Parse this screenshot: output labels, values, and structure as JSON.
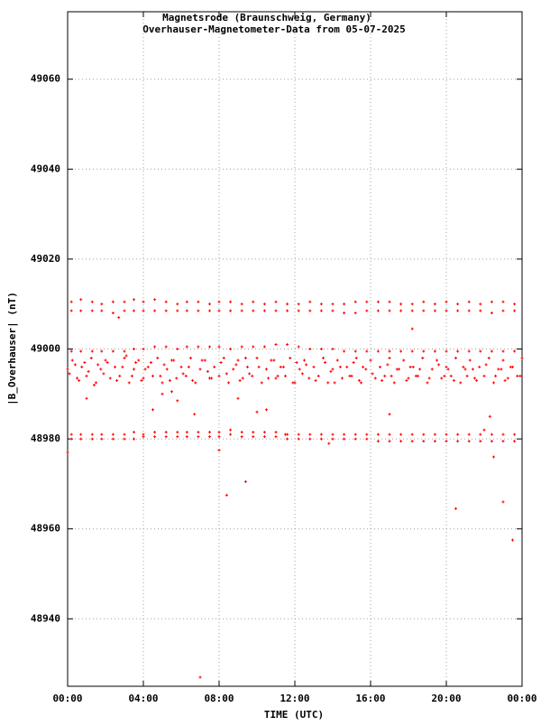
{
  "chart_data": {
    "type": "scatter",
    "title": [
      "Magnetsrode (Braunschweig, Germany)",
      "Overhauser-Magnetometer-Data from 05-07-2025"
    ],
    "x_label": "TIME (UTC)",
    "y_label": "|B_Overhauser| (nT)",
    "xlim": [
      0,
      24
    ],
    "ylim": [
      48925,
      49075
    ],
    "xticks": [
      {
        "value": 0,
        "label": "00:00"
      },
      {
        "value": 4,
        "label": "04:00"
      },
      {
        "value": 8,
        "label": "08:00"
      },
      {
        "value": 12,
        "label": "12:00"
      },
      {
        "value": 16,
        "label": "16:00"
      },
      {
        "value": 20,
        "label": "20:00"
      },
      {
        "value": 24,
        "label": "00:00"
      }
    ],
    "yticks": [
      48940,
      48960,
      48980,
      49000,
      49020,
      49040,
      49060
    ],
    "grid": true,
    "color": "#ff0000",
    "series": [
      {
        "color": "#ff0000",
        "x": [
          0.2,
          0.7,
          1.3,
          1.8,
          2.4,
          3.0,
          3.5,
          4.0,
          4.6,
          5.2,
          5.8,
          6.3,
          6.9,
          7.5,
          8.0,
          8.6,
          9.2,
          9.8,
          10.4,
          11.0,
          11.6,
          12.2,
          12.8,
          13.4,
          14.0,
          14.6,
          15.2,
          15.8,
          16.4,
          17.0,
          17.6,
          18.2,
          18.8,
          19.4,
          20.0,
          20.6,
          21.2,
          21.8,
          22.4,
          23.0,
          23.6
        ],
        "values": [
          49010.5,
          49011,
          49010.5,
          49010,
          49010.5,
          49010.5,
          49011,
          49010.5,
          49011,
          49010.5,
          49010,
          49010.5,
          49010.5,
          49010,
          49010.5,
          49010.5,
          49010,
          49010.5,
          49010,
          49010.5,
          49010,
          49010,
          49010.5,
          49010,
          49010,
          49010,
          49010.5,
          49010.5,
          49010.5,
          49010.5,
          49010,
          49010,
          49010.5,
          49010,
          49010.5,
          49010,
          49010.5,
          49010,
          49010.5,
          49010.5,
          49010
        ]
      },
      {
        "color": "#ff0000",
        "x": [
          0.2,
          0.7,
          1.3,
          1.8,
          2.4,
          3.0,
          3.5,
          4.0,
          4.6,
          5.2,
          5.8,
          6.3,
          6.9,
          7.5,
          8.0,
          8.6,
          9.2,
          9.8,
          10.4,
          11.0,
          11.6,
          12.2,
          12.8,
          13.4,
          14.0,
          14.6,
          15.2,
          15.8,
          16.4,
          17.0,
          17.6,
          18.2,
          18.8,
          19.4,
          20.0,
          20.6,
          21.2,
          21.8,
          22.4,
          23.0,
          23.6
        ],
        "values": [
          49008.5,
          49008.5,
          49008.5,
          49008.5,
          49008,
          49008.5,
          49008.5,
          49008.5,
          49008.5,
          49008.5,
          49008.5,
          49008.5,
          49008.5,
          49008.5,
          49008.5,
          49008.5,
          49008.5,
          49008.5,
          49008.5,
          49008.5,
          49008.5,
          49008.5,
          49008.5,
          49008.5,
          49008.5,
          49008,
          49008,
          49008.5,
          49008.5,
          49008.5,
          49008.5,
          49008.5,
          49008.5,
          49008.5,
          49008.5,
          49008.5,
          49008.5,
          49008.5,
          49008,
          49008.5,
          49008.5
        ]
      },
      {
        "color": "#ff0000",
        "x": [
          0.2,
          0.7,
          1.3,
          1.8,
          2.4,
          3.0,
          3.5,
          4.0,
          4.6,
          5.2,
          5.8,
          6.3,
          6.9,
          7.5,
          8.0,
          8.6,
          9.2,
          9.8,
          10.4,
          11.0,
          11.6,
          12.2,
          12.8,
          13.4,
          14.0,
          14.6,
          15.2,
          15.8,
          16.4,
          17.0,
          17.6,
          18.2,
          18.8,
          19.4,
          20.0,
          20.6,
          21.2,
          21.8,
          22.4,
          23.0,
          23.6
        ],
        "values": [
          48999.5,
          48999.5,
          48999.5,
          48999.5,
          48999.5,
          48999.5,
          49000,
          49000,
          49000.5,
          49000.5,
          49000,
          49000.5,
          49000.5,
          49000.5,
          49000.5,
          49000,
          49000.5,
          49000.5,
          49000.5,
          49001,
          49001,
          49000.5,
          49000,
          49000,
          49000,
          48999.5,
          48999.5,
          48999.5,
          48999.5,
          48999.5,
          48999.5,
          48999.5,
          48999.5,
          48999.5,
          48999.5,
          48999.5,
          48999.5,
          48999.5,
          48999.5,
          48999.5,
          48999.5
        ]
      },
      {
        "color": "#ff0000",
        "x": [
          0,
          0.25,
          0.5,
          0.75,
          1,
          1.25,
          1.5,
          1.75,
          2,
          2.25,
          2.5,
          2.75,
          3,
          3.25,
          3.5,
          3.75,
          4,
          4.25,
          4.5,
          4.75,
          5,
          5.25,
          5.5,
          5.75,
          6,
          6.25,
          6.5,
          6.75,
          7,
          7.25,
          7.5,
          7.75,
          8,
          8.25,
          8.5,
          8.75,
          9,
          9.25,
          9.5,
          9.75,
          10,
          10.25,
          10.5,
          10.75,
          11,
          11.25,
          11.5,
          11.75,
          12,
          12.25,
          12.5,
          12.75,
          13,
          13.25,
          13.5,
          13.75,
          14,
          14.25,
          14.5,
          14.75,
          15,
          15.25,
          15.5,
          15.75,
          16,
          16.25,
          16.5,
          16.75,
          17,
          17.25,
          17.5,
          17.75,
          18,
          18.25,
          18.5,
          18.75,
          19,
          19.25,
          19.5,
          19.75,
          20,
          20.25,
          20.5,
          20.75,
          21,
          21.25,
          21.5,
          21.75,
          22,
          22.25,
          22.5,
          22.75,
          23,
          23.25,
          23.5,
          23.75,
          24
        ],
        "values": [
          48995.5,
          48997.5,
          48993.5,
          48996,
          48994,
          48998,
          48992.5,
          48995.5,
          48997.5,
          48993.5,
          48996,
          48994,
          48998,
          48992.5,
          48995.5,
          48997.5,
          48993.5,
          48996,
          48994,
          48998,
          48992.5,
          48995.5,
          48997.5,
          48993.5,
          48996,
          48994,
          48998,
          48992.5,
          48995.5,
          48997.5,
          48993.5,
          48996,
          48994,
          48998,
          48992.5,
          48995.5,
          48997.5,
          48993.5,
          48996,
          48994,
          48998,
          48992.5,
          48995.5,
          48997.5,
          48993.5,
          48996,
          48994,
          48998,
          48992.5,
          48995.5,
          48997.5,
          48993.5,
          48996,
          48994,
          48998,
          48992.5,
          48995.5,
          48997.5,
          48993.5,
          48996,
          48994,
          48998,
          48992.5,
          48995.5,
          48997.5,
          48993.5,
          48996,
          48994,
          48998,
          48992.5,
          48995.5,
          48997.5,
          48993.5,
          48996,
          48994,
          48998,
          48992.5,
          48995.5,
          48997.5,
          48993.5,
          48996,
          48994,
          48998,
          48992.5,
          48995.5,
          48997.5,
          48993.5,
          48996,
          48994,
          48998,
          48992.5,
          48995.5,
          48997.5,
          48993.5,
          48996,
          48994,
          48998
        ]
      },
      {
        "color": "#ff0000",
        "x": [
          0.1,
          0.4,
          0.6,
          0.9,
          1.1,
          1.4,
          1.6,
          1.9,
          2.1,
          2.6,
          2.9,
          3.1,
          3.4,
          3.6,
          3.9,
          4.1,
          4.4,
          4.9,
          5.1,
          5.4,
          5.6,
          6.1,
          6.4,
          6.6,
          7.1,
          7.4,
          7.6,
          8.1,
          8.4,
          8.9,
          9.1,
          9.4,
          9.6,
          10.1,
          10.6,
          10.9,
          11.1,
          11.4,
          11.9,
          12.1,
          12.4,
          12.6,
          13.1,
          13.6,
          13.9,
          14.1,
          14.4,
          14.9,
          15.1,
          15.4,
          15.6,
          16.1,
          16.6,
          16.9,
          17.1,
          17.4,
          17.9,
          18.1,
          18.4,
          18.6,
          19.1,
          19.6,
          19.9,
          20.1,
          20.4,
          20.9,
          21.1,
          21.4,
          21.6,
          22.1,
          22.6,
          22.9,
          23.1,
          23.4,
          23.9
        ],
        "values": [
          48994.5,
          48996.5,
          48993,
          48997,
          48995,
          48992,
          48996.5,
          48994.5,
          48997,
          48993,
          48996,
          48998.5,
          48994,
          48997,
          48993,
          48995.5,
          48997,
          48994,
          48996.5,
          48993,
          48997.5,
          48994.5,
          48996,
          48993,
          48997.5,
          48995,
          48993.5,
          48997,
          48994.5,
          48996.5,
          48993,
          48998,
          48994.5,
          48996,
          48993.5,
          48997.5,
          48994,
          48996,
          48992.5,
          48997,
          48994.5,
          48996.5,
          48993,
          48997,
          48995,
          48992.5,
          48996,
          48994,
          48997,
          48993,
          48996,
          48994.5,
          48993,
          48996.5,
          48994,
          48995.5,
          48993,
          48996,
          48994,
          48995.5,
          48993.5,
          48996.5,
          48994,
          48995.5,
          48993,
          48996,
          48994,
          48995.5,
          48993,
          48996.5,
          48994,
          48995.5,
          48993,
          48996,
          48994
        ]
      },
      {
        "color": "#ff0000",
        "x": [
          0.2,
          0.7,
          1.3,
          1.8,
          2.4,
          3.0,
          3.5,
          4.0,
          4.6,
          5.2,
          5.8,
          6.3,
          6.9,
          7.5,
          8.0,
          8.6,
          9.2,
          9.8,
          10.4,
          11.0,
          11.6,
          12.2,
          12.8,
          13.4,
          14.0,
          14.6,
          15.2,
          15.8,
          16.4,
          17.0,
          17.6,
          18.2,
          18.8,
          19.4,
          20.0,
          20.6,
          21.2,
          21.8,
          22.4,
          23.0,
          23.6
        ],
        "values": [
          48981,
          48981,
          48981,
          48981,
          48981,
          48981,
          48981.5,
          48981,
          48981.5,
          48981.5,
          48981.5,
          48981.5,
          48981.5,
          48981.5,
          48981.5,
          48982,
          48981.5,
          48981.5,
          48981.5,
          48981.5,
          48981,
          48981,
          48981,
          48981,
          48981,
          48981,
          48981,
          48981,
          48981,
          48981,
          48981,
          48981,
          48981,
          48981,
          48981,
          48981,
          48981,
          48981,
          48981,
          48981,
          48981
        ]
      },
      {
        "color": "#ff0000",
        "x": [
          0.2,
          0.7,
          1.3,
          1.8,
          2.4,
          3.0,
          3.5,
          4.0,
          4.6,
          5.2,
          5.8,
          6.3,
          6.9,
          7.5,
          8.0,
          8.6,
          9.2,
          9.8,
          10.4,
          11.0,
          11.6,
          12.2,
          12.8,
          13.4,
          14.0,
          14.6,
          15.2,
          15.8,
          16.4,
          17.0,
          17.6,
          18.2,
          18.8,
          19.4,
          20.0,
          20.6,
          21.2,
          21.8,
          22.4,
          23.0,
          23.6
        ],
        "values": [
          48980,
          48980,
          48980,
          48980,
          48980,
          48980,
          48980,
          48980.5,
          48980.5,
          48980.5,
          48980.5,
          48980.5,
          48980.5,
          48980.5,
          48980.5,
          48981,
          48980.5,
          48980.5,
          48980.5,
          48980.5,
          48980,
          48980,
          48980,
          48980,
          48980,
          48980,
          48980,
          48980,
          48979.5,
          48979.5,
          48979.5,
          48979.5,
          48979.5,
          48979.5,
          48979.5,
          48979.5,
          48979.5,
          48979.5,
          48979.5,
          48979.5,
          48979.5
        ]
      },
      {
        "color": "#ff0000",
        "x": [
          0,
          2.7,
          7,
          8.4,
          9.4,
          8,
          18.2,
          20.5,
          22.5,
          23,
          23.5,
          5,
          5.5,
          6.7,
          9,
          10,
          10.5,
          17,
          22,
          22.3,
          4.5,
          1,
          13.8,
          5.8,
          11.5
        ],
        "values": [
          48977,
          49007,
          48927,
          48967.5,
          48970.5,
          48977.5,
          49004.5,
          48964.5,
          48976,
          48966,
          48957.5,
          48990,
          48990.5,
          48985.5,
          48989,
          48986,
          48986.5,
          48985.5,
          48982,
          48985,
          48986.5,
          48989,
          48979,
          48988.5,
          48981
        ]
      }
    ]
  }
}
